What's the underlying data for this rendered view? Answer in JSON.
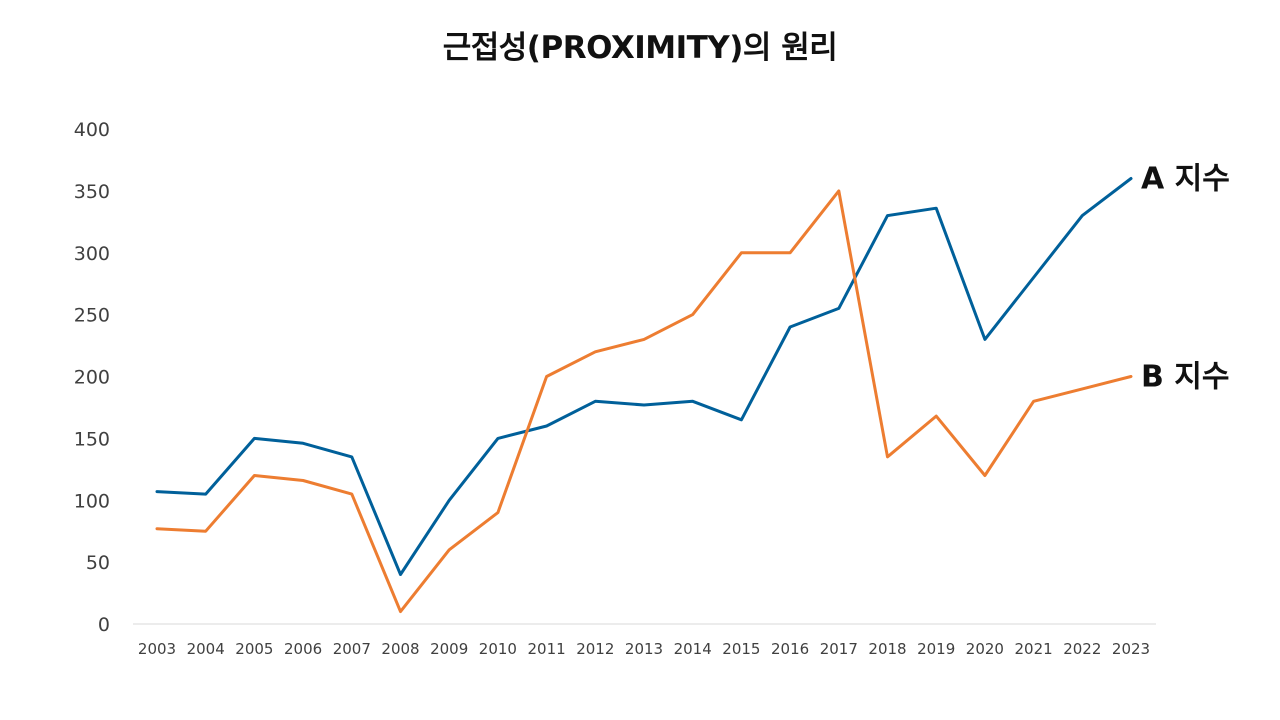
{
  "chart_data": {
    "type": "line",
    "title": "근접성(PROXIMITY)의 원리",
    "xlabel": "",
    "ylabel": "",
    "categories": [
      "2003",
      "2004",
      "2005",
      "2006",
      "2007",
      "2008",
      "2009",
      "2010",
      "2011",
      "2012",
      "2013",
      "2014",
      "2015",
      "2016",
      "2017",
      "2018",
      "2019",
      "2020",
      "2021",
      "2022",
      "2023"
    ],
    "ylim": [
      0,
      400
    ],
    "yticks": [
      "0",
      "50",
      "100",
      "150",
      "200",
      "250",
      "300",
      "350",
      "400"
    ],
    "grid": false,
    "legend": "end-of-line labels",
    "series": [
      {
        "name": "A 지수",
        "color": "#00609A",
        "values": [
          107,
          105,
          150,
          146,
          135,
          40,
          100,
          150,
          160,
          180,
          177,
          180,
          165,
          240,
          255,
          330,
          336,
          230,
          280,
          330,
          360
        ]
      },
      {
        "name": "B 지수",
        "color": "#ED7D31",
        "values": [
          77,
          75,
          120,
          116,
          105,
          10,
          60,
          90,
          200,
          220,
          230,
          250,
          300,
          300,
          350,
          135,
          168,
          120,
          180,
          190,
          200
        ]
      }
    ]
  }
}
